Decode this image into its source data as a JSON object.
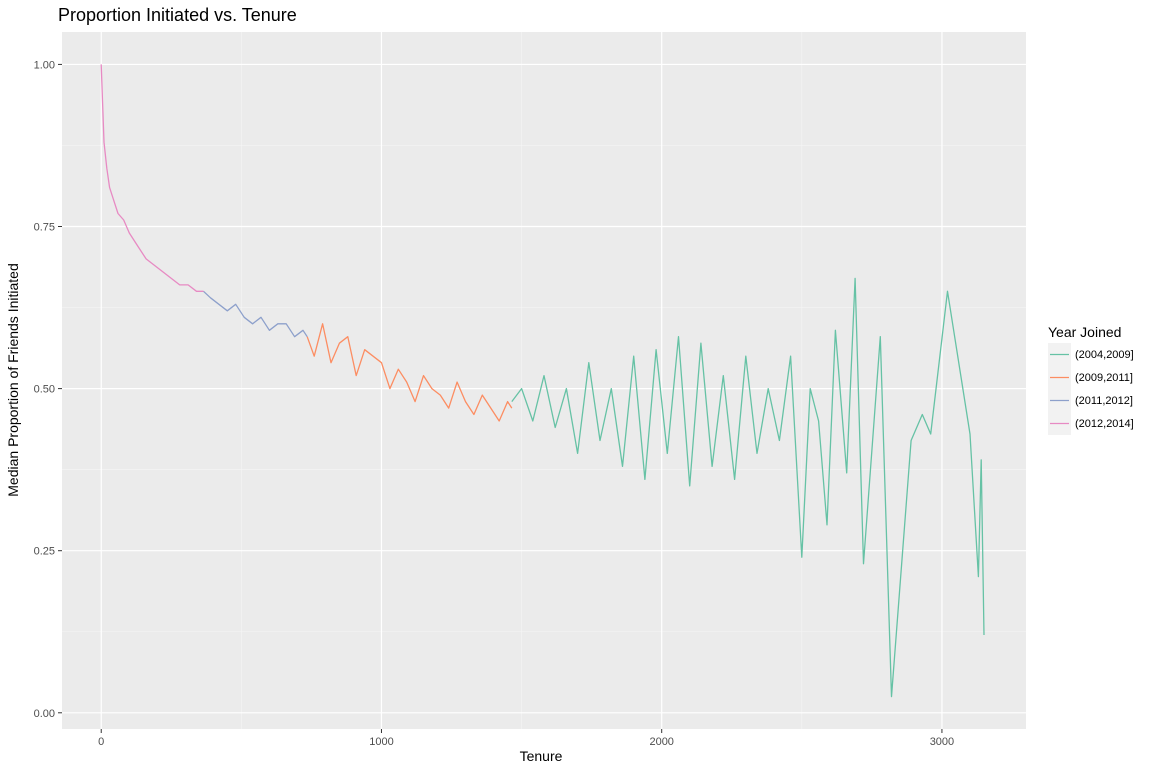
{
  "chart_data": {
    "type": "line",
    "title": "Proportion Initiated vs. Tenure",
    "xlabel": "Tenure",
    "ylabel": "Median Proportion of Friends Initiated",
    "xlim": [
      -140,
      3300
    ],
    "ylim": [
      -0.025,
      1.05
    ],
    "x_ticks": [
      0,
      1000,
      2000,
      3000
    ],
    "x_tick_labels": [
      "0",
      "1000",
      "2000",
      "3000"
    ],
    "y_ticks": [
      0.0,
      0.25,
      0.5,
      0.75,
      1.0
    ],
    "y_tick_labels": [
      "0.00",
      "0.25",
      "0.50",
      "0.75",
      "1.00"
    ],
    "grid": true,
    "legend": {
      "title": "Year Joined",
      "position": "right",
      "entries": [
        "(2004,2009]",
        "(2009,2011]",
        "(2011,2012]",
        "(2012,2014]"
      ]
    },
    "series": [
      {
        "name": "(2004,2009]",
        "color": "#66c2a5",
        "x": [
          1465,
          1500,
          1540,
          1580,
          1620,
          1660,
          1700,
          1740,
          1780,
          1820,
          1860,
          1900,
          1940,
          1980,
          2020,
          2060,
          2100,
          2140,
          2180,
          2220,
          2260,
          2300,
          2340,
          2380,
          2420,
          2460,
          2500,
          2530,
          2560,
          2590,
          2620,
          2660,
          2690,
          2720,
          2780,
          2820,
          2890,
          2930,
          2960,
          3020,
          3100,
          3130,
          3140,
          3150
        ],
        "y": [
          0.48,
          0.5,
          0.45,
          0.52,
          0.44,
          0.5,
          0.4,
          0.54,
          0.42,
          0.5,
          0.38,
          0.55,
          0.36,
          0.56,
          0.4,
          0.58,
          0.35,
          0.57,
          0.38,
          0.52,
          0.36,
          0.55,
          0.4,
          0.5,
          0.42,
          0.55,
          0.24,
          0.5,
          0.45,
          0.29,
          0.59,
          0.37,
          0.67,
          0.23,
          0.58,
          0.025,
          0.42,
          0.46,
          0.43,
          0.65,
          0.43,
          0.21,
          0.39,
          0.12
        ]
      },
      {
        "name": "(2009,2011]",
        "color": "#fc8d62",
        "x": [
          735,
          760,
          790,
          820,
          850,
          880,
          910,
          940,
          970,
          1000,
          1030,
          1060,
          1090,
          1120,
          1150,
          1180,
          1210,
          1240,
          1270,
          1300,
          1330,
          1360,
          1390,
          1420,
          1450,
          1465
        ],
        "y": [
          0.58,
          0.55,
          0.6,
          0.54,
          0.57,
          0.58,
          0.52,
          0.56,
          0.55,
          0.54,
          0.5,
          0.53,
          0.51,
          0.48,
          0.52,
          0.5,
          0.49,
          0.47,
          0.51,
          0.48,
          0.46,
          0.49,
          0.47,
          0.45,
          0.48,
          0.47
        ]
      },
      {
        "name": "(2011,2012]",
        "color": "#8da0cb",
        "x": [
          365,
          390,
          420,
          450,
          480,
          510,
          540,
          570,
          600,
          630,
          660,
          690,
          720,
          735
        ],
        "y": [
          0.65,
          0.64,
          0.63,
          0.62,
          0.63,
          0.61,
          0.6,
          0.61,
          0.59,
          0.6,
          0.6,
          0.58,
          0.59,
          0.58
        ]
      },
      {
        "name": "(2012,2014]",
        "color": "#e78ac3",
        "x": [
          0,
          5,
          10,
          20,
          30,
          45,
          60,
          80,
          100,
          130,
          160,
          190,
          220,
          250,
          280,
          310,
          340,
          365
        ],
        "y": [
          1.0,
          0.94,
          0.88,
          0.84,
          0.81,
          0.79,
          0.77,
          0.76,
          0.74,
          0.72,
          0.7,
          0.69,
          0.68,
          0.67,
          0.66,
          0.66,
          0.65,
          0.65
        ]
      }
    ]
  }
}
